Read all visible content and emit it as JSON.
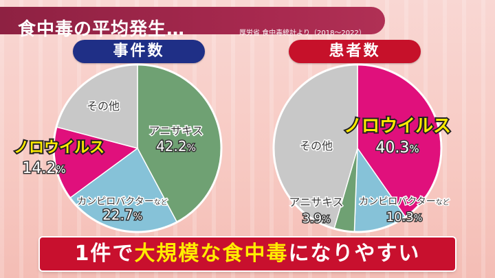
{
  "title": "食中毒の平均発生…",
  "source": "厚労省 食中毒統計より（2018〜2022）",
  "chart_data": [
    {
      "type": "pie",
      "title": "事件数",
      "slices": [
        {
          "label": "アニサキス",
          "value": 42.2,
          "value_text": "42.2",
          "unit": "%",
          "color": "#6fa173",
          "highlight": false,
          "small_text": ""
        },
        {
          "label": "カンピロバクター",
          "value": 22.7,
          "value_text": "22.7",
          "unit": "%",
          "color": "#86c2d8",
          "highlight": false,
          "small_text": "など"
        },
        {
          "label": "ノロウイルス",
          "value": 14.2,
          "value_text": "14.2",
          "unit": "%",
          "color": "#e0107c",
          "highlight": true,
          "small_text": ""
        },
        {
          "label": "その他",
          "value": 20.9,
          "value_text": "",
          "unit": "",
          "color": "#c8c8c8",
          "highlight": false,
          "small_text": ""
        }
      ]
    },
    {
      "type": "pie",
      "title": "患者数",
      "slices": [
        {
          "label": "ノロウイルス",
          "value": 40.3,
          "value_text": "40.3",
          "unit": "%",
          "color": "#e0107c",
          "highlight": true,
          "small_text": ""
        },
        {
          "label": "カンピロバクター",
          "value": 10.3,
          "value_text": "10.3",
          "unit": "%",
          "color": "#86c2d8",
          "highlight": false,
          "small_text": "など"
        },
        {
          "label": "アニサキス",
          "value": 3.9,
          "value_text": "3.9",
          "unit": "%",
          "color": "#6fa173",
          "highlight": false,
          "small_text": ""
        },
        {
          "label": "その他",
          "value": 45.5,
          "value_text": "",
          "unit": "",
          "color": "#c8c8c8",
          "highlight": false,
          "small_text": ""
        }
      ]
    }
  ],
  "banner": {
    "parts": [
      {
        "text": "1件で",
        "yellow": false
      },
      {
        "text": "大規模な食中毒",
        "yellow": true
      },
      {
        "text": "になりやすい",
        "yellow": false
      }
    ]
  }
}
